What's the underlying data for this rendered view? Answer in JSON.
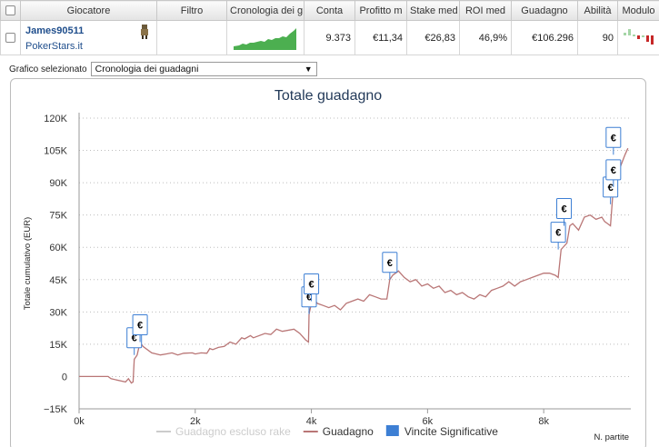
{
  "table": {
    "headers": [
      "",
      "Giocatore",
      "Filtro",
      "Cronologia dei g",
      "Conta",
      "Profitto m",
      "Stake med",
      "ROI med",
      "Guadagno",
      "Abilità",
      "Modulo"
    ],
    "row": {
      "player_name": "James90511",
      "site": "PokerStars.it",
      "filter": "",
      "count": "9.373",
      "avg_profit": "€11,34",
      "avg_stake": "€26,83",
      "avg_roi": "46,9%",
      "profit": "€106.296",
      "ability": "90"
    },
    "colors": {
      "sparkline": "#4caf50",
      "form_win": "#a5d6a7",
      "form_loss": "#c62828"
    }
  },
  "selector": {
    "label": "Grafico selezionato",
    "value": "Cronologia dei guadagni"
  },
  "chart_data": {
    "type": "line",
    "title": "Totale guadagno",
    "ylabel": "Totale cumulativo (EUR)",
    "xlabel": "N. partite",
    "xlim": [
      0,
      9500
    ],
    "ylim": [
      -15000,
      120000
    ],
    "yticks": [
      -15000,
      0,
      15000,
      30000,
      45000,
      60000,
      75000,
      90000,
      105000,
      120000
    ],
    "yticklabels": [
      "−15K",
      "0",
      "15K",
      "30K",
      "45K",
      "60K",
      "75K",
      "90K",
      "105K",
      "120K"
    ],
    "xticks": [
      0,
      2000,
      4000,
      6000,
      8000
    ],
    "xticklabels": [
      "0k",
      "2k",
      "4k",
      "6k",
      "8k"
    ],
    "grid": "horizontal dotted",
    "legend_position": "bottom",
    "legend": [
      {
        "name": "Guadagno escluso rake",
        "color": "#cccccc",
        "shape": "line"
      },
      {
        "name": "Guadagno",
        "color": "#b97676",
        "shape": "line"
      },
      {
        "name": "Vincite Significative",
        "color": "#3d7fd4",
        "shape": "square"
      }
    ],
    "series": [
      {
        "name": "Guadagno",
        "color": "#b97676",
        "x": [
          0,
          200,
          500,
          550,
          800,
          850,
          900,
          930,
          950,
          1000,
          1050,
          1100,
          1250,
          1400,
          1500,
          1600,
          1700,
          1800,
          1950,
          2000,
          2100,
          2200,
          2250,
          2300,
          2400,
          2500,
          2600,
          2700,
          2800,
          2850,
          2950,
          3000,
          3200,
          3300,
          3400,
          3500,
          3700,
          3800,
          3900,
          3950,
          3960,
          4000,
          4050,
          4100,
          4200,
          4300,
          4400,
          4500,
          4600,
          4700,
          4800,
          4900,
          5000,
          5100,
          5200,
          5300,
          5350,
          5400,
          5500,
          5600,
          5700,
          5800,
          5900,
          6000,
          6100,
          6200,
          6300,
          6400,
          6500,
          6600,
          6700,
          6800,
          6900,
          7000,
          7100,
          7200,
          7300,
          7400,
          7500,
          7600,
          7700,
          7800,
          7900,
          8000,
          8100,
          8200,
          8250,
          8300,
          8400,
          8450,
          8500,
          8600,
          8700,
          8800,
          8900,
          9000,
          9050,
          9100,
          9150,
          9200,
          9300,
          9400,
          9450
        ],
        "y": [
          0,
          0,
          0,
          -1000,
          -2500,
          -1000,
          -3000,
          -2500,
          8000,
          10000,
          16000,
          14000,
          11000,
          10000,
          10500,
          11000,
          10000,
          10800,
          11000,
          10500,
          11000,
          10800,
          13000,
          12500,
          13500,
          14000,
          16000,
          15000,
          18000,
          17500,
          19000,
          18000,
          20000,
          19500,
          22000,
          21000,
          22000,
          20000,
          17000,
          16000,
          29000,
          34000,
          36000,
          34000,
          33000,
          32000,
          33000,
          31000,
          34000,
          35000,
          36000,
          35000,
          38000,
          37000,
          36000,
          36000,
          45000,
          47000,
          49000,
          46000,
          44000,
          45000,
          42000,
          43000,
          41000,
          42000,
          39000,
          40000,
          38000,
          39000,
          37000,
          36000,
          38000,
          37000,
          40000,
          41000,
          42000,
          44000,
          42000,
          44000,
          45000,
          46000,
          47000,
          48000,
          48000,
          47000,
          46000,
          59000,
          62000,
          70000,
          71000,
          68000,
          74000,
          75000,
          73000,
          74000,
          72000,
          71000,
          70000,
          88000,
          96000,
          103000,
          106000
        ]
      }
    ],
    "significant_wins": [
      {
        "x": 950,
        "y": 10000
      },
      {
        "x": 1050,
        "y": 16000
      },
      {
        "x": 3960,
        "y": 29000
      },
      {
        "x": 4000,
        "y": 35000
      },
      {
        "x": 5350,
        "y": 45000
      },
      {
        "x": 8250,
        "y": 59000
      },
      {
        "x": 8350,
        "y": 70000
      },
      {
        "x": 9150,
        "y": 80000
      },
      {
        "x": 9200,
        "y": 88000
      },
      {
        "x": 9200,
        "y": 103000
      }
    ],
    "marker_symbol": "€",
    "colors": {
      "axis": "#999999",
      "grid": "#bdbdbd",
      "marker_border": "#3d7fd4",
      "title": "#233a59",
      "tick": "#333333"
    }
  }
}
